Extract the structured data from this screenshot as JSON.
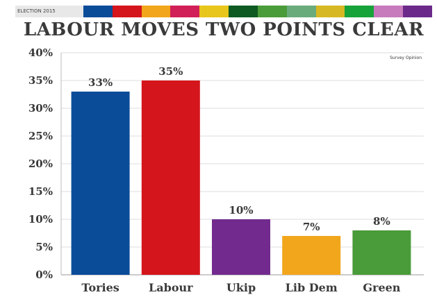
{
  "header": {
    "strip_tag": "ELECTION 2015",
    "strip_colors": [
      "#0b4c99",
      "#d4151b",
      "#f2a61c",
      "#d11f58",
      "#e8c61b",
      "#0e5a22",
      "#4a9b3a",
      "#6aab7c",
      "#d6b824",
      "#16a33a",
      "#c77bbd",
      "#6b2a8a"
    ]
  },
  "chart_data": {
    "type": "bar",
    "title": "LABOUR MOVES TWO POINTS CLEAR",
    "source": "Survey Opinion",
    "categories": [
      "Tories",
      "Labour",
      "Ukip",
      "Lib Dem",
      "Green"
    ],
    "values": [
      33,
      35,
      10,
      7,
      8
    ],
    "data_labels": [
      "33%",
      "35%",
      "10%",
      "7%",
      "8%"
    ],
    "colors": [
      "#0b4c99",
      "#d4151b",
      "#722a8e",
      "#f2a61c",
      "#4a9b3a"
    ],
    "ylim": [
      0,
      40
    ],
    "yticks": [
      "0%",
      "5%",
      "10%",
      "15%",
      "20%",
      "25%",
      "30%",
      "35%",
      "40%"
    ],
    "xlabel": "",
    "ylabel": "",
    "grid": true
  }
}
